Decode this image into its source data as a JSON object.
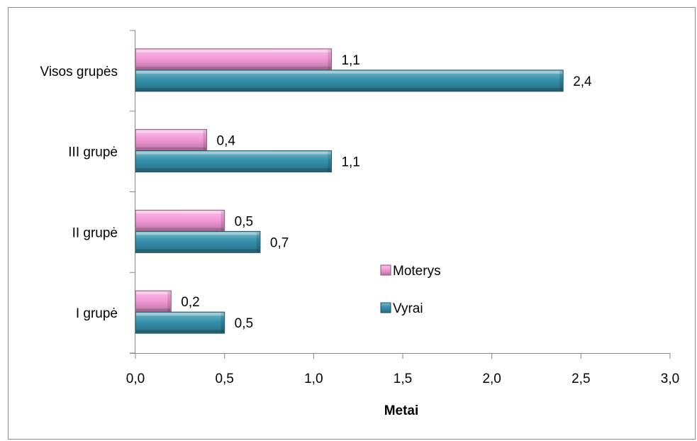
{
  "chart_data": {
    "type": "bar",
    "orientation": "horizontal",
    "categories": [
      "I grupė",
      "II grupė",
      "III grupė",
      "Visos grupės"
    ],
    "series": [
      {
        "name": "Moterys",
        "values": [
          0.2,
          0.5,
          0.4,
          1.1
        ],
        "labels": [
          "0,2",
          "0,5",
          "0,4",
          "1,1"
        ],
        "color": "#f49ad8"
      },
      {
        "name": "Vyrai",
        "values": [
          0.5,
          0.7,
          1.1,
          2.4
        ],
        "labels": [
          "0,5",
          "0,7",
          "1,1",
          "2,4"
        ],
        "color": "#3591ac"
      }
    ],
    "xlabel": "Metai",
    "xlim": [
      0,
      3
    ],
    "xticks": [
      0,
      0.5,
      1,
      1.5,
      2,
      2.5,
      3
    ],
    "xtick_labels": [
      "0,0",
      "0,5",
      "1,0",
      "1,5",
      "2,0",
      "2,5",
      "3,0"
    ],
    "grid": false,
    "legend_position": "right"
  }
}
